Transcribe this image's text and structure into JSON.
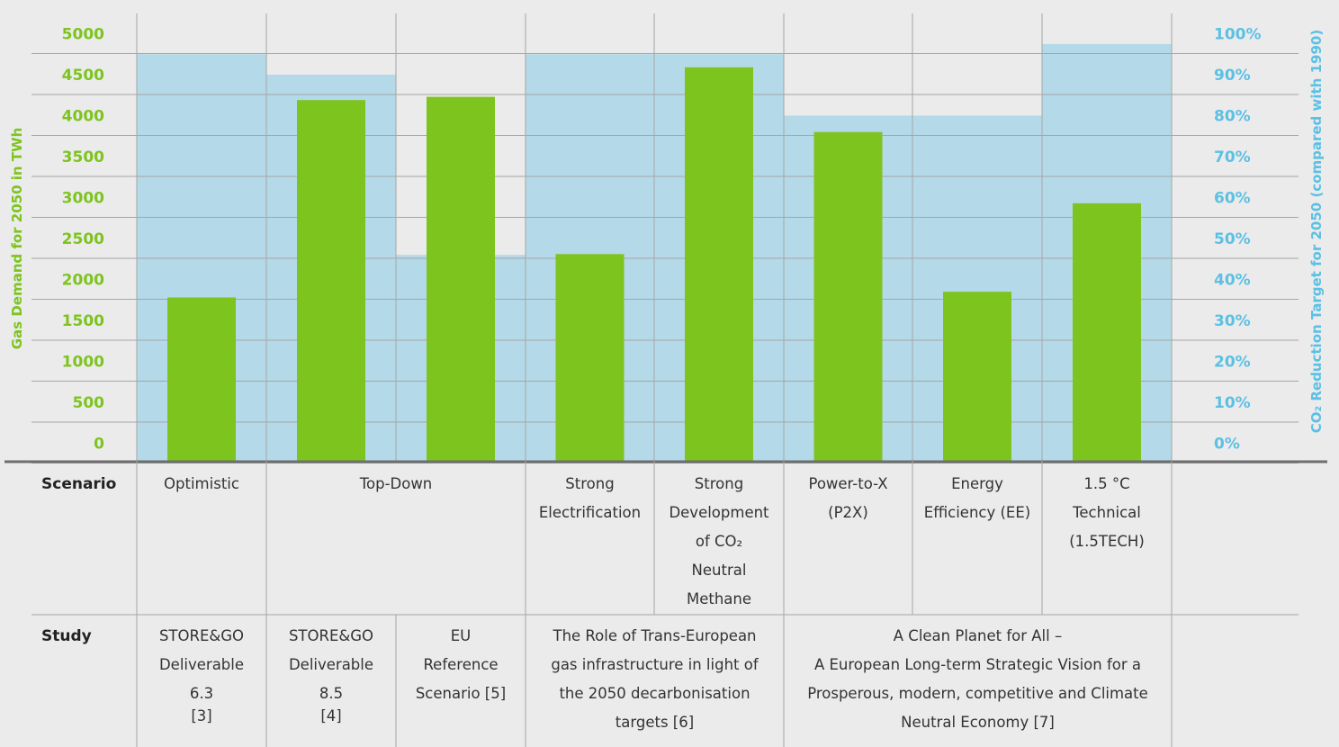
{
  "chart_data": {
    "type": "bar",
    "categories": [
      "Optimistic",
      "Top-Down (STORE&GO 8.5)",
      "Top-Down (EU Reference)",
      "Strong Electrification",
      "Strong Development of CO2 Neutral Methane",
      "Power-to-X (P2X)",
      "Energy Efficiency (EE)",
      "1.5 °C Technical (1.5TECH)"
    ],
    "series": [
      {
        "name": "Gas Demand for 2050 in TWh",
        "axis": "left",
        "color": "#7dc41f",
        "values": [
          1780,
          4190,
          4230,
          2310,
          4590,
          3800,
          1850,
          2930
        ]
      },
      {
        "name": "CO2 Reduction Target for 2050 (compared with 1990)",
        "axis": "right",
        "color": "#b4d9e8",
        "values": [
          95,
          90,
          46,
          95,
          95,
          80,
          80,
          97.5
        ]
      }
    ],
    "ylabel": "Gas Demand for 2050 in TWh",
    "ylabel_right": "CO₂ Reduction Target for 2050 (compared with 1990)",
    "ylim": [
      0,
      5000
    ],
    "ylim_right": [
      0,
      100
    ],
    "yticks": [
      "0",
      "500",
      "1000",
      "1500",
      "2000",
      "2500",
      "3000",
      "3500",
      "4000",
      "4500",
      "5000"
    ],
    "yticks_right": [
      "0%",
      "10%",
      "20%",
      "30%",
      "40%",
      "50%",
      "60%",
      "70%",
      "80%",
      "90%",
      "100%"
    ],
    "grid": true
  },
  "table": {
    "scenario_label": "Scenario",
    "study_label": "Study",
    "scenario_cells": [
      {
        "lines": [
          "Optimistic"
        ]
      },
      {
        "lines": [
          "Top-Down"
        ]
      },
      {
        "lines": [
          "Strong",
          "Electrification"
        ]
      },
      {
        "lines": [
          "Strong",
          "Development",
          "of CO₂",
          "Neutral",
          "Methane"
        ]
      },
      {
        "lines": [
          "Power-to-X",
          "(P2X)"
        ]
      },
      {
        "lines": [
          "Energy",
          "Efficiency (EE)"
        ]
      },
      {
        "lines": [
          "1.5 °C",
          "Technical",
          "(1.5TECH)"
        ]
      }
    ],
    "study_cells": [
      {
        "lines": [
          "STORE&GO",
          "Deliverable",
          "6.3",
          "[3]"
        ]
      },
      {
        "lines": [
          "STORE&GO",
          "Deliverable",
          "8.5",
          "[4]"
        ]
      },
      {
        "lines": [
          "EU",
          "Reference",
          "Scenario [5]"
        ]
      },
      {
        "lines": [
          "The Role of Trans-European",
          "gas infrastructure in light of",
          "the 2050 decarbonisation",
          "targets [6]"
        ]
      },
      {
        "lines": [
          "A Clean Planet for All –",
          "A European Long-term Strategic Vision for a",
          "Prosperous, modern, competitive and Climate",
          "Neutral Economy [7]"
        ]
      }
    ]
  },
  "colors": {
    "background": "#ebebeb",
    "gas_bar": "#7dc41f",
    "co2_bar": "#b4d9e8",
    "left_axis": "#7dc41f",
    "right_axis": "#5cc0e4",
    "grid": "#a6a6a6"
  }
}
